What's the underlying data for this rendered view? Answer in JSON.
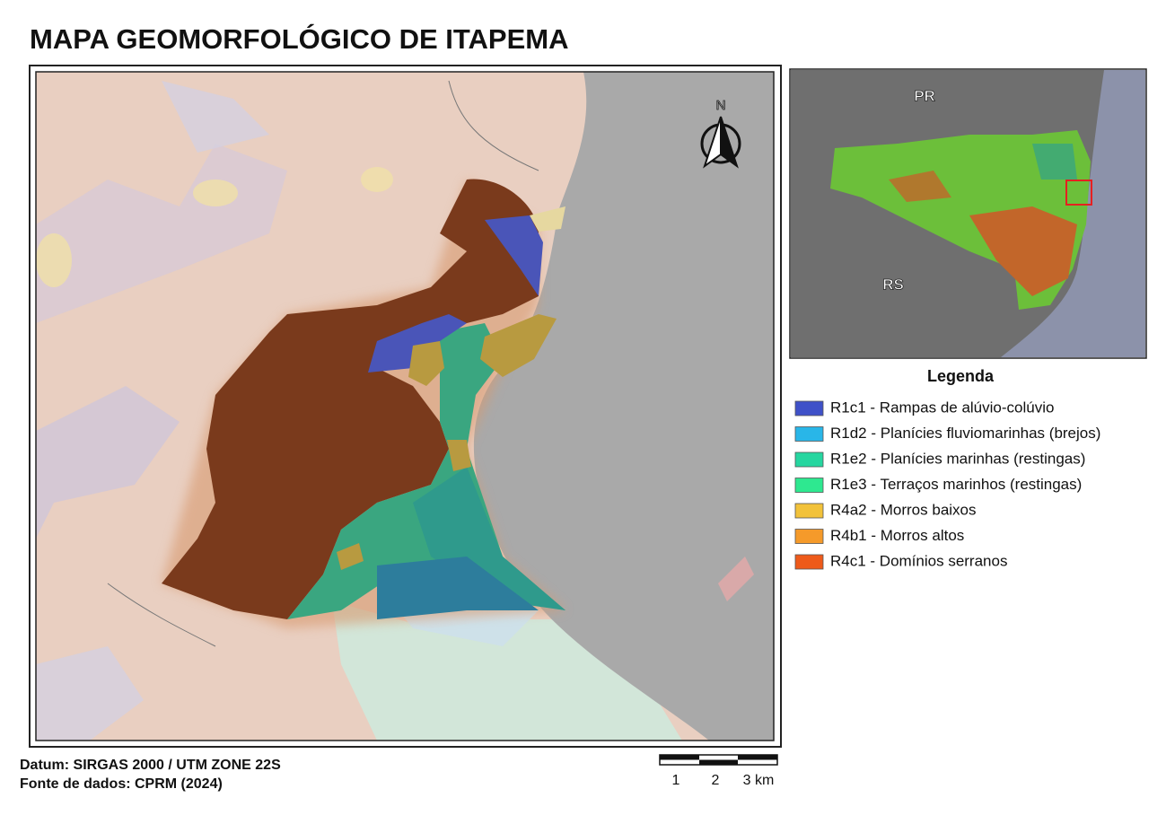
{
  "title": "MAPA GEOMORFOLÓGICO DE ITAPEMA",
  "main_map": {
    "north_label": "N"
  },
  "inset_map": {
    "labels": [
      "PR",
      "RS"
    ]
  },
  "legend": {
    "title": "Legenda",
    "items": [
      {
        "label": "R1c1 - Rampas de alúvio-colúvio",
        "color": "#3f51c8"
      },
      {
        "label": "R1d2 - Planícies fluviomarinhas (brejos)",
        "color": "#29b6e8"
      },
      {
        "label": "R1e2 - Planícies marinhas (restingas)",
        "color": "#26d6a0"
      },
      {
        "label": "R1e3 - Terraços marinhos (restingas)",
        "color": "#2ee890"
      },
      {
        "label": "R4a2 - Morros baixos",
        "color": "#f2c23a"
      },
      {
        "label": "R4b1 - Morros altos",
        "color": "#f59a2a"
      },
      {
        "label": "R4c1 - Domínios serranos",
        "color": "#ee5a1a"
      }
    ]
  },
  "footer": {
    "datum": "Datum: SIRGAS 2000 / UTM ZONE 22S",
    "source": "Fonte de dados: CPRM (2024)"
  },
  "scale_bar": {
    "labels": [
      "1",
      "2",
      "3 km"
    ]
  }
}
